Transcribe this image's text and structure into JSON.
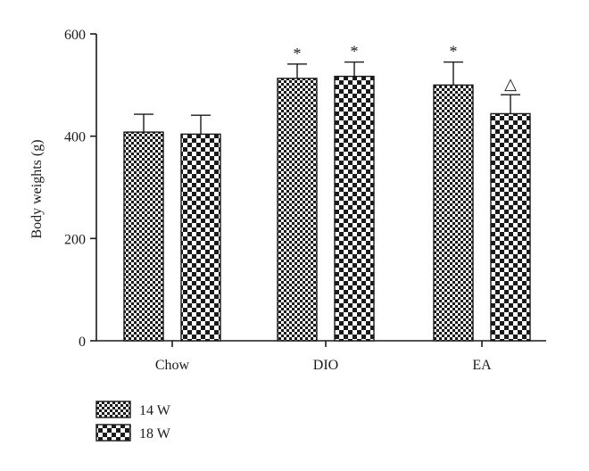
{
  "chart_data": {
    "type": "bar",
    "ylabel": "Body weights (g)",
    "xlabel": "",
    "ylim": [
      0,
      600
    ],
    "yticks": [
      0,
      200,
      400,
      600
    ],
    "categories": [
      "Chow",
      "DIO",
      "EA"
    ],
    "series": [
      {
        "name": "14 W",
        "values": [
          408,
          513,
          500
        ],
        "errors": [
          35,
          28,
          45
        ],
        "annotations": [
          "",
          "*",
          "*"
        ]
      },
      {
        "name": "18 W",
        "values": [
          404,
          517,
          444
        ],
        "errors": [
          37,
          28,
          37
        ],
        "annotations": [
          "",
          "*",
          "△"
        ]
      }
    ],
    "legend": {
      "placement": "bottom-left"
    },
    "grid": false
  }
}
